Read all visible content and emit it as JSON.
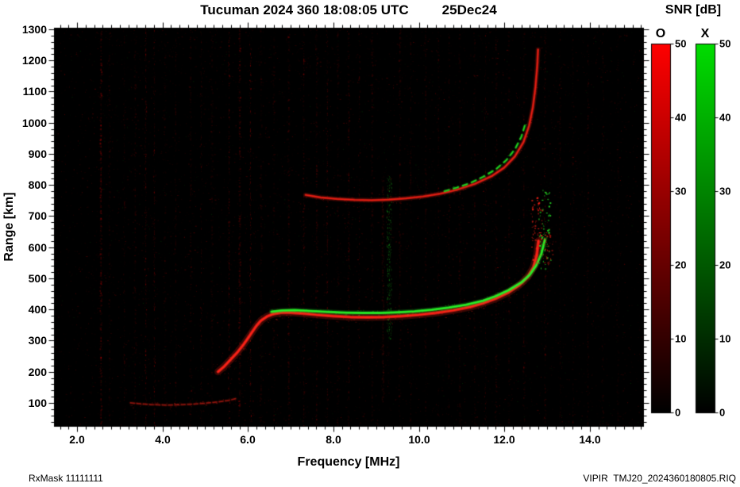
{
  "header": {
    "title": "Tucuman 2024 360 18:08:05 UTC",
    "date": "25Dec24"
  },
  "colorbar": {
    "title": "SNR [dB]",
    "o_label": "O",
    "x_label": "X",
    "min": 0,
    "max": 50,
    "tick_values": [
      0,
      10,
      20,
      30,
      40,
      50
    ],
    "o_top_color": "#ff0000",
    "x_top_color": "#00dd00",
    "bottom_color": "#000000"
  },
  "footer": {
    "left": "RxMask 11111111",
    "right": "VIPIR  TMJ20_2024360180805.RIQ"
  },
  "chart_data": {
    "type": "heatmap",
    "title": "Tucuman 2024 360 18:08:05 UTC 25Dec24",
    "xlabel": "Frequency [MHz]",
    "ylabel": "Range [km]",
    "xlim": [
      1.46,
      15.25
    ],
    "ylim": [
      26,
      1305
    ],
    "x_ticks": [
      2,
      4,
      6,
      8,
      10,
      12,
      14
    ],
    "x_tick_labels": [
      "2.0",
      "4.0",
      "6.0",
      "8.0",
      "10.0",
      "12.0",
      "14.0"
    ],
    "x_minor_step": 0.2,
    "y_ticks": [
      100,
      200,
      300,
      400,
      500,
      600,
      700,
      800,
      900,
      1000,
      1100,
      1200,
      1300
    ],
    "y_tick_labels": [
      "100",
      "200",
      "300",
      "400",
      "500",
      "600",
      "700",
      "800",
      "900",
      "1000",
      "1100",
      "1200",
      "1300"
    ],
    "y_minor_step": 20,
    "background": "#000000",
    "series": [
      {
        "name": "F-region O-mode 1st hop",
        "kind": "O1",
        "color": "#ff2318",
        "points": [
          [
            5.3,
            200
          ],
          [
            5.45,
            218
          ],
          [
            5.6,
            240
          ],
          [
            5.75,
            262
          ],
          [
            5.9,
            288
          ],
          [
            6.0,
            308
          ],
          [
            6.1,
            328
          ],
          [
            6.2,
            348
          ],
          [
            6.3,
            364
          ],
          [
            6.45,
            378
          ],
          [
            6.6,
            386
          ],
          [
            6.8,
            390
          ],
          [
            7.0,
            390
          ],
          [
            7.3,
            387
          ],
          [
            7.6,
            383
          ],
          [
            8.0,
            379
          ],
          [
            8.4,
            376
          ],
          [
            8.8,
            375
          ],
          [
            9.2,
            376
          ],
          [
            9.6,
            379
          ],
          [
            10.0,
            383
          ],
          [
            10.4,
            389
          ],
          [
            10.8,
            397
          ],
          [
            11.2,
            408
          ],
          [
            11.5,
            420
          ],
          [
            11.8,
            435
          ],
          [
            12.1,
            455
          ],
          [
            12.35,
            478
          ],
          [
            12.55,
            505
          ],
          [
            12.68,
            535
          ],
          [
            12.76,
            575
          ],
          [
            12.8,
            620
          ]
        ]
      },
      {
        "name": "F-region X-mode 1st hop",
        "kind": "X1",
        "color": "#28f028",
        "points": [
          [
            6.55,
            393
          ],
          [
            6.8,
            397
          ],
          [
            7.1,
            398
          ],
          [
            7.5,
            395
          ],
          [
            7.9,
            392
          ],
          [
            8.3,
            390
          ],
          [
            8.7,
            389
          ],
          [
            9.1,
            389
          ],
          [
            9.5,
            391
          ],
          [
            9.9,
            394
          ],
          [
            10.3,
            399
          ],
          [
            10.7,
            406
          ],
          [
            11.1,
            415
          ],
          [
            11.5,
            428
          ],
          [
            11.8,
            443
          ],
          [
            12.1,
            462
          ],
          [
            12.4,
            487
          ],
          [
            12.6,
            512
          ],
          [
            12.75,
            542
          ],
          [
            12.87,
            580
          ],
          [
            12.95,
            625
          ]
        ]
      },
      {
        "name": "F-region O-mode 2nd hop",
        "kind": "O2",
        "color": "#e81f14",
        "points": [
          [
            7.35,
            768
          ],
          [
            7.7,
            760
          ],
          [
            8.1,
            755
          ],
          [
            8.5,
            752
          ],
          [
            8.9,
            751
          ],
          [
            9.3,
            753
          ],
          [
            9.7,
            757
          ],
          [
            10.1,
            763
          ],
          [
            10.5,
            772
          ],
          [
            10.9,
            785
          ],
          [
            11.3,
            803
          ],
          [
            11.7,
            828
          ],
          [
            12.0,
            856
          ],
          [
            12.25,
            892
          ],
          [
            12.45,
            938
          ],
          [
            12.58,
            990
          ],
          [
            12.67,
            1050
          ],
          [
            12.73,
            1115
          ],
          [
            12.77,
            1180
          ],
          [
            12.79,
            1235
          ]
        ]
      },
      {
        "name": "F-region X-mode 2nd hop",
        "kind": "X2",
        "color": "#22d822",
        "points": [
          [
            10.6,
            780
          ],
          [
            10.9,
            792
          ],
          [
            11.2,
            806
          ],
          [
            11.5,
            826
          ],
          [
            11.8,
            850
          ],
          [
            12.05,
            880
          ],
          [
            12.25,
            915
          ],
          [
            12.4,
            955
          ],
          [
            12.5,
            1000
          ]
        ]
      },
      {
        "name": "E-region trace",
        "kind": "E",
        "color": "#c81e14",
        "points": [
          [
            3.25,
            100
          ],
          [
            3.5,
            97
          ],
          [
            3.8,
            94
          ],
          [
            4.1,
            93
          ],
          [
            4.4,
            94
          ],
          [
            4.7,
            96
          ],
          [
            5.0,
            99
          ],
          [
            5.3,
            103
          ],
          [
            5.55,
            108
          ],
          [
            5.75,
            115
          ]
        ]
      }
    ],
    "spread_echoes": [
      {
        "color": "#ff2318",
        "f_range": [
          12.62,
          12.88
        ],
        "range_range": [
          540,
          770
        ],
        "count": 70
      },
      {
        "color": "#28f028",
        "f_range": [
          12.8,
          13.08
        ],
        "range_range": [
          530,
          790
        ],
        "count": 60
      },
      {
        "color": "#e81f14",
        "f_range": [
          12.9,
          13.12
        ],
        "range_range": [
          545,
          650
        ],
        "count": 30
      }
    ],
    "interference_stripes": [
      {
        "f": 2.55,
        "s": 0.5
      },
      {
        "f": 2.75,
        "s": 0.22
      },
      {
        "f": 3.1,
        "s": 0.18
      },
      {
        "f": 3.35,
        "s": 0.22
      },
      {
        "f": 3.6,
        "s": 0.3
      },
      {
        "f": 3.8,
        "s": 0.28
      },
      {
        "f": 4.05,
        "s": 0.18
      },
      {
        "f": 4.3,
        "s": 0.2
      },
      {
        "f": 4.65,
        "s": 0.22
      },
      {
        "f": 4.9,
        "s": 0.18
      },
      {
        "f": 5.15,
        "s": 0.2
      },
      {
        "f": 5.55,
        "s": 0.3
      },
      {
        "f": 5.8,
        "s": 0.4
      },
      {
        "f": 6.05,
        "s": 0.28
      },
      {
        "f": 6.3,
        "s": 0.22
      },
      {
        "f": 6.6,
        "s": 0.18
      },
      {
        "f": 6.95,
        "s": 0.3
      },
      {
        "f": 7.3,
        "s": 0.26
      },
      {
        "f": 7.6,
        "s": 0.3
      },
      {
        "f": 7.85,
        "s": 0.26
      },
      {
        "f": 8.1,
        "s": 0.2
      },
      {
        "f": 8.35,
        "s": 0.26
      },
      {
        "f": 8.6,
        "s": 0.2
      },
      {
        "f": 8.9,
        "s": 0.24
      },
      {
        "f": 9.55,
        "s": 0.26
      },
      {
        "f": 9.8,
        "s": 0.2
      },
      {
        "f": 10.15,
        "s": 0.26
      },
      {
        "f": 10.45,
        "s": 0.2
      },
      {
        "f": 10.7,
        "s": 0.18
      },
      {
        "f": 10.95,
        "s": 0.24
      },
      {
        "f": 11.3,
        "s": 0.2
      },
      {
        "f": 11.55,
        "s": 0.18
      },
      {
        "f": 11.8,
        "s": 0.24
      },
      {
        "f": 12.1,
        "s": 0.2
      },
      {
        "f": 12.45,
        "s": 0.22
      },
      {
        "f": 12.95,
        "s": 0.28
      },
      {
        "f": 13.3,
        "s": 0.18
      },
      {
        "f": 13.6,
        "s": 0.15
      },
      {
        "f": 13.95,
        "s": 0.18
      },
      {
        "f": 14.3,
        "s": 0.16
      },
      {
        "f": 14.65,
        "s": 0.14
      }
    ],
    "interference_bands": [
      {
        "f": 9.3,
        "color": "#20c020",
        "range": [
          300,
          830
        ],
        "strength": 0.3,
        "width": 7
      },
      {
        "f": 9.15,
        "color": "#8a1410",
        "range": [
          100,
          830
        ],
        "strength": 0.25,
        "width": 4
      }
    ]
  }
}
